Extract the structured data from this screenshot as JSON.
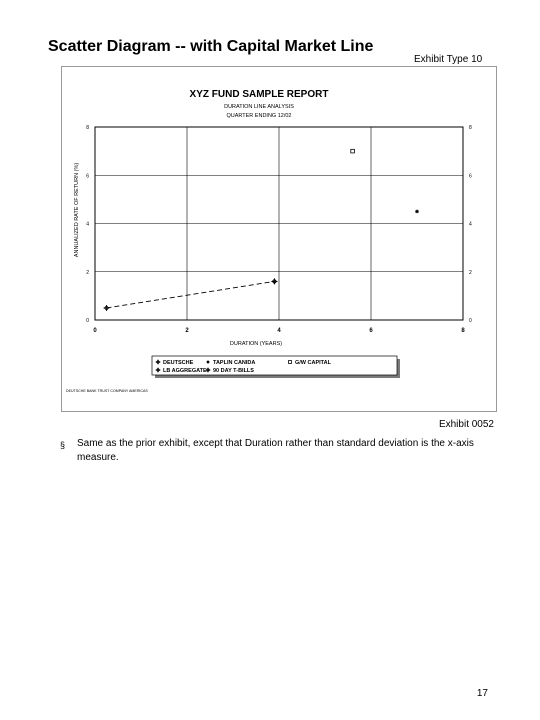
{
  "page": {
    "title": "Scatter Diagram -- with Capital Market Line",
    "exhibit_type": "Exhibit Type 10",
    "exhibit_number": "Exhibit 0052",
    "bullet_symbol": "§",
    "bullet_text": "Same as the prior exhibit, except that Duration rather than standard deviation is the x-axis measure.",
    "page_number": "17"
  },
  "chart_data": {
    "type": "scatter",
    "title": "XYZ FUND SAMPLE REPORT",
    "subtitle_lines": [
      "DURATION LINE ANALYSIS",
      "QUARTER ENDING 12/02"
    ],
    "xlabel": "DURATION (YEARS)",
    "ylabel": "ANNUALIZED RATE OF RETURN (%)",
    "xlim": [
      0,
      8
    ],
    "ylim": [
      0,
      8
    ],
    "xticks": [
      0,
      2,
      4,
      6,
      8
    ],
    "yticks": [
      0,
      2,
      4,
      6,
      8
    ],
    "grid": true,
    "legend_position": "bottom",
    "source_note": "DEUTSCHE BANK TRUST COMPANY AMERICAS",
    "series": [
      {
        "name": "DEUTSCHE",
        "marker": "cross-diamond",
        "points": [
          [
            3.9,
            1.6
          ]
        ]
      },
      {
        "name": "LB AGGREGATE",
        "marker": "diamond-cross",
        "points": [
          [
            3.9,
            1.6
          ]
        ]
      },
      {
        "name": "TAPLIN CANIDA",
        "marker": "asterisk",
        "points": [
          [
            7.0,
            4.5
          ]
        ]
      },
      {
        "name": "90 DAY T-BILLS",
        "marker": "cross-diamond",
        "points": [
          [
            0.25,
            0.5
          ]
        ]
      },
      {
        "name": "G/W CAPITAL",
        "marker": "square",
        "points": [
          [
            5.6,
            7.0
          ]
        ]
      }
    ],
    "capital_market_line": {
      "style": "dashed",
      "from": [
        0.25,
        0.5
      ],
      "to": [
        3.9,
        1.6
      ]
    },
    "colors": {
      "axis": "#000000",
      "grid": "#000000",
      "legend_shadow": "#7a7a7a"
    }
  }
}
